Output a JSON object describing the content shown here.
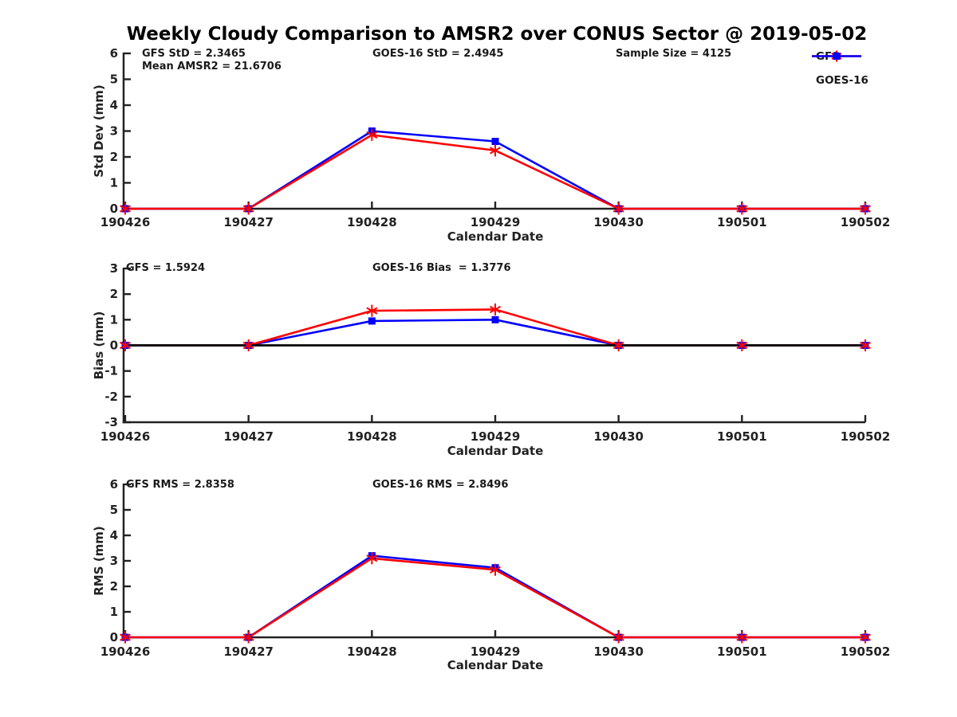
{
  "title": "Weekly Cloudy Comparison to AMSR2 over CONUS Sector @ 2019-05-02",
  "legend": {
    "items": [
      {
        "label": "GFS",
        "color": "#ff0000",
        "marker": "asterisk"
      },
      {
        "label": "GOES-16",
        "color": "#0000ff",
        "marker": "square"
      }
    ]
  },
  "chart_data": [
    {
      "type": "line",
      "title": "",
      "xlabel": "Calendar Date",
      "ylabel": "Std Dev (mm)",
      "categories": [
        "190426",
        "190427",
        "190428",
        "190429",
        "190430",
        "190501",
        "190502"
      ],
      "ylim": [
        0,
        6
      ],
      "ytick_step": 1,
      "grid": false,
      "zero_line": false,
      "series": [
        {
          "name": "GFS",
          "color": "#ff0000",
          "marker": "asterisk",
          "values": [
            0,
            0,
            2.85,
            2.25,
            0,
            0,
            0
          ]
        },
        {
          "name": "GOES-16",
          "color": "#0000ff",
          "marker": "square",
          "values": [
            0,
            0,
            3.0,
            2.6,
            0,
            0,
            0
          ]
        }
      ],
      "annotations": {
        "gfs_std": "GFS StD = 2.3465",
        "mean_amsr2": "Mean AMSR2 = 21.6706",
        "goes_std": "GOES-16 StD = 2.4945",
        "sample_size": "Sample Size = 4125"
      },
      "legend_position": "upper right"
    },
    {
      "type": "line",
      "title": "",
      "xlabel": "Calendar Date",
      "ylabel": "Bias (mm)",
      "categories": [
        "190426",
        "190427",
        "190428",
        "190429",
        "190430",
        "190501",
        "190502"
      ],
      "ylim": [
        -3,
        3
      ],
      "ytick_step": 1,
      "grid": false,
      "zero_line": true,
      "series": [
        {
          "name": "GFS",
          "color": "#ff0000",
          "marker": "asterisk",
          "values": [
            0,
            0,
            1.35,
            1.4,
            0,
            0,
            0
          ]
        },
        {
          "name": "GOES-16",
          "color": "#0000ff",
          "marker": "square",
          "values": [
            0,
            0,
            0.95,
            1.0,
            0,
            0,
            0
          ]
        }
      ],
      "annotations": {
        "gfs_bias": "GFS = 1.5924",
        "goes_bias": "GOES-16 Bias  = 1.3776"
      }
    },
    {
      "type": "line",
      "title": "",
      "xlabel": "Calendar Date",
      "ylabel": "RMS (mm)",
      "categories": [
        "190426",
        "190427",
        "190428",
        "190429",
        "190430",
        "190501",
        "190502"
      ],
      "ylim": [
        0,
        6
      ],
      "ytick_step": 1,
      "grid": false,
      "zero_line": false,
      "series": [
        {
          "name": "GFS",
          "color": "#ff0000",
          "marker": "asterisk",
          "values": [
            0,
            0,
            3.1,
            2.65,
            0,
            0,
            0
          ]
        },
        {
          "name": "GOES-16",
          "color": "#0000ff",
          "marker": "square",
          "values": [
            0,
            0,
            3.2,
            2.73,
            0,
            0,
            0
          ]
        }
      ],
      "annotations": {
        "gfs_rms": "GFS RMS = 2.8358",
        "goes_rms": "GOES-16 RMS = 2.8496"
      }
    }
  ]
}
